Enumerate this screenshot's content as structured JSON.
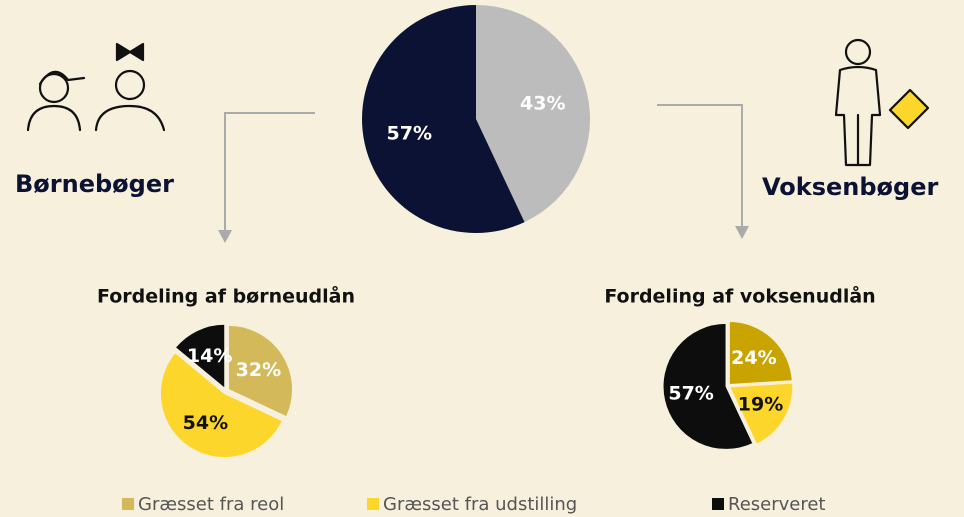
{
  "chart_data": [
    {
      "type": "pie",
      "categories": [
        "Voksenbøger",
        "Børnebøger"
      ],
      "values": [
        43,
        57
      ],
      "value_labels": [
        "43%",
        "57%"
      ],
      "colors": [
        "#bcbcbc",
        "#0b1233"
      ]
    },
    {
      "type": "pie",
      "title": "Fordeling af børneudlån",
      "values": [
        32,
        54,
        14
      ],
      "value_labels": [
        "32%",
        "54%",
        "14%"
      ],
      "colors": [
        "#d4b95a",
        "#fdd62b",
        "#0d0d0d"
      ]
    },
    {
      "type": "pie",
      "title": "Fordeling af voksenudlån",
      "values": [
        24,
        19,
        57
      ],
      "value_labels": [
        "24%",
        "19%",
        "57%"
      ],
      "colors": [
        "#c9a300",
        "#fdd62b",
        "#0d0d0d"
      ]
    }
  ],
  "legend": {
    "categories": [
      "Græsset fra reol",
      "Græsset fra udstilling",
      "Reserveret"
    ],
    "colors": [
      "#d4b95a",
      "#fdd62b",
      "#0d0d0d"
    ]
  }
}
